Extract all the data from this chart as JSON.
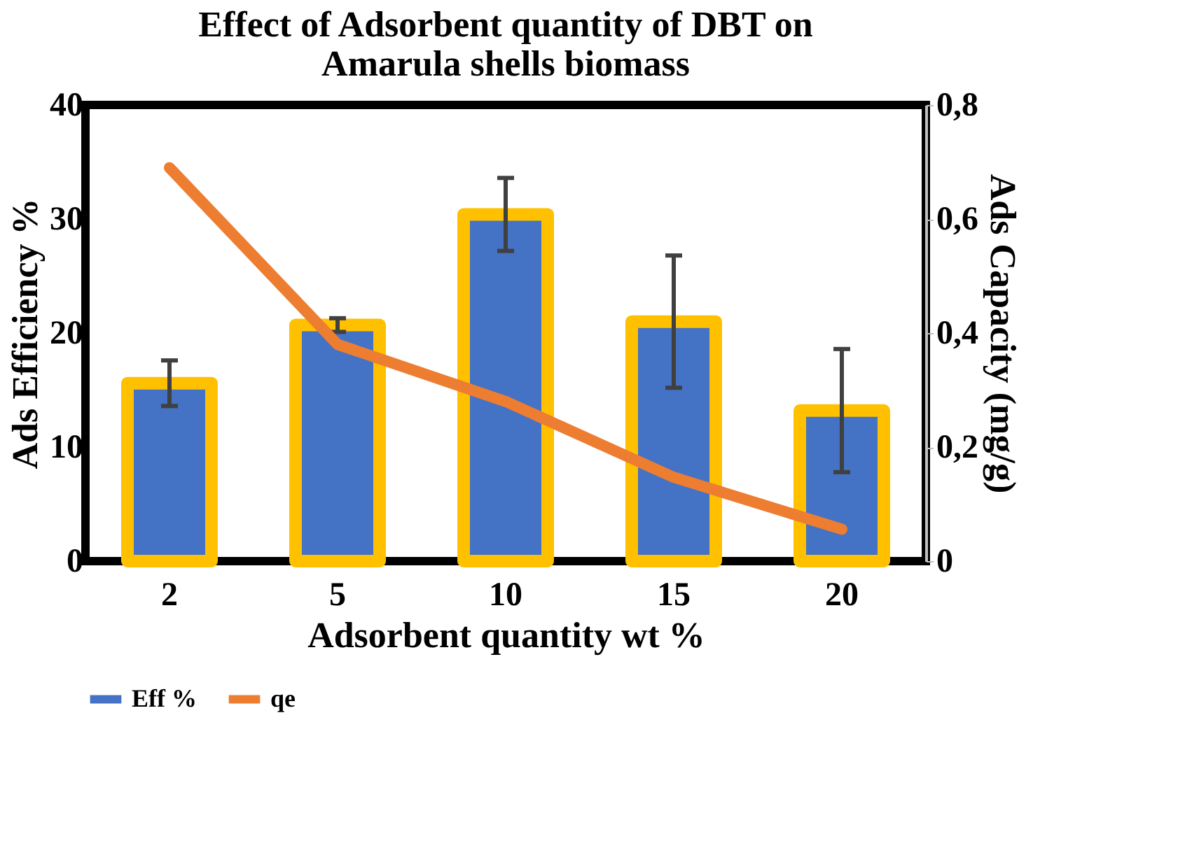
{
  "chart_data": {
    "type": "bar",
    "title": [
      "Effect of Adsorbent quantity of DBT on",
      "Amarula shells biomass"
    ],
    "xlabel": "Adsorbent quantity wt %",
    "ylabel": "Ads Efficiency %",
    "y2label": "Ads Capacity (mg/g)",
    "categories": [
      "2",
      "5",
      "10",
      "15",
      "20"
    ],
    "series": [
      {
        "name": "Eff %",
        "color": "#4472c4",
        "values": [
          15.6,
          20.7,
          30.4,
          21.0,
          13.2
        ],
        "errors": [
          2.0,
          0.6,
          3.2,
          5.8,
          5.4
        ]
      },
      {
        "name": "qe",
        "type": "line",
        "axis": "y2",
        "color": "#ed7d31",
        "values": [
          0.69,
          0.38,
          0.28,
          0.147,
          0.056
        ]
      }
    ],
    "ylim": [
      0,
      40
    ],
    "yticks": [
      0,
      10,
      20,
      30,
      40
    ],
    "y2lim": [
      0,
      0.8
    ],
    "y2ticks": [
      0,
      {
        "value": 0.2,
        "label": "0,2"
      },
      {
        "value": 0.4,
        "label": "0,4"
      },
      {
        "value": 0.6,
        "label": "0,6"
      },
      {
        "value": 0.8,
        "label": "0,8"
      }
    ],
    "grid": false,
    "legend": "bottom",
    "line_style": "solid"
  }
}
